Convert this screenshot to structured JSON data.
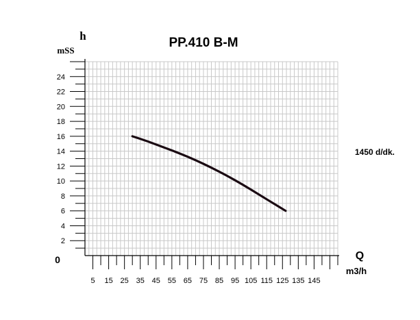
{
  "chart_data": {
    "type": "line",
    "title": "PP.410 B-M",
    "ylabel": "h",
    "yunit": "mSS",
    "xlabel": "Q",
    "xunit": "m3/h",
    "zero_label": "0",
    "speed_label": "1450  d/dk.",
    "xlim": [
      0,
      160
    ],
    "ylim": [
      0,
      26
    ],
    "xticks": [
      5,
      15,
      25,
      35,
      45,
      55,
      65,
      75,
      85,
      95,
      105,
      115,
      125,
      135,
      145
    ],
    "yticks": [
      2,
      4,
      6,
      8,
      10,
      12,
      14,
      16,
      18,
      20,
      22,
      24
    ],
    "grid": true,
    "series": [
      {
        "color": "#1a0a12",
        "x": [
          30,
          40,
          50,
          60,
          70,
          80,
          90,
          100,
          110,
          120,
          127
        ],
        "y": [
          16.0,
          15.3,
          14.5,
          13.7,
          12.8,
          11.8,
          10.7,
          9.5,
          8.2,
          6.9,
          6.0
        ]
      }
    ]
  }
}
